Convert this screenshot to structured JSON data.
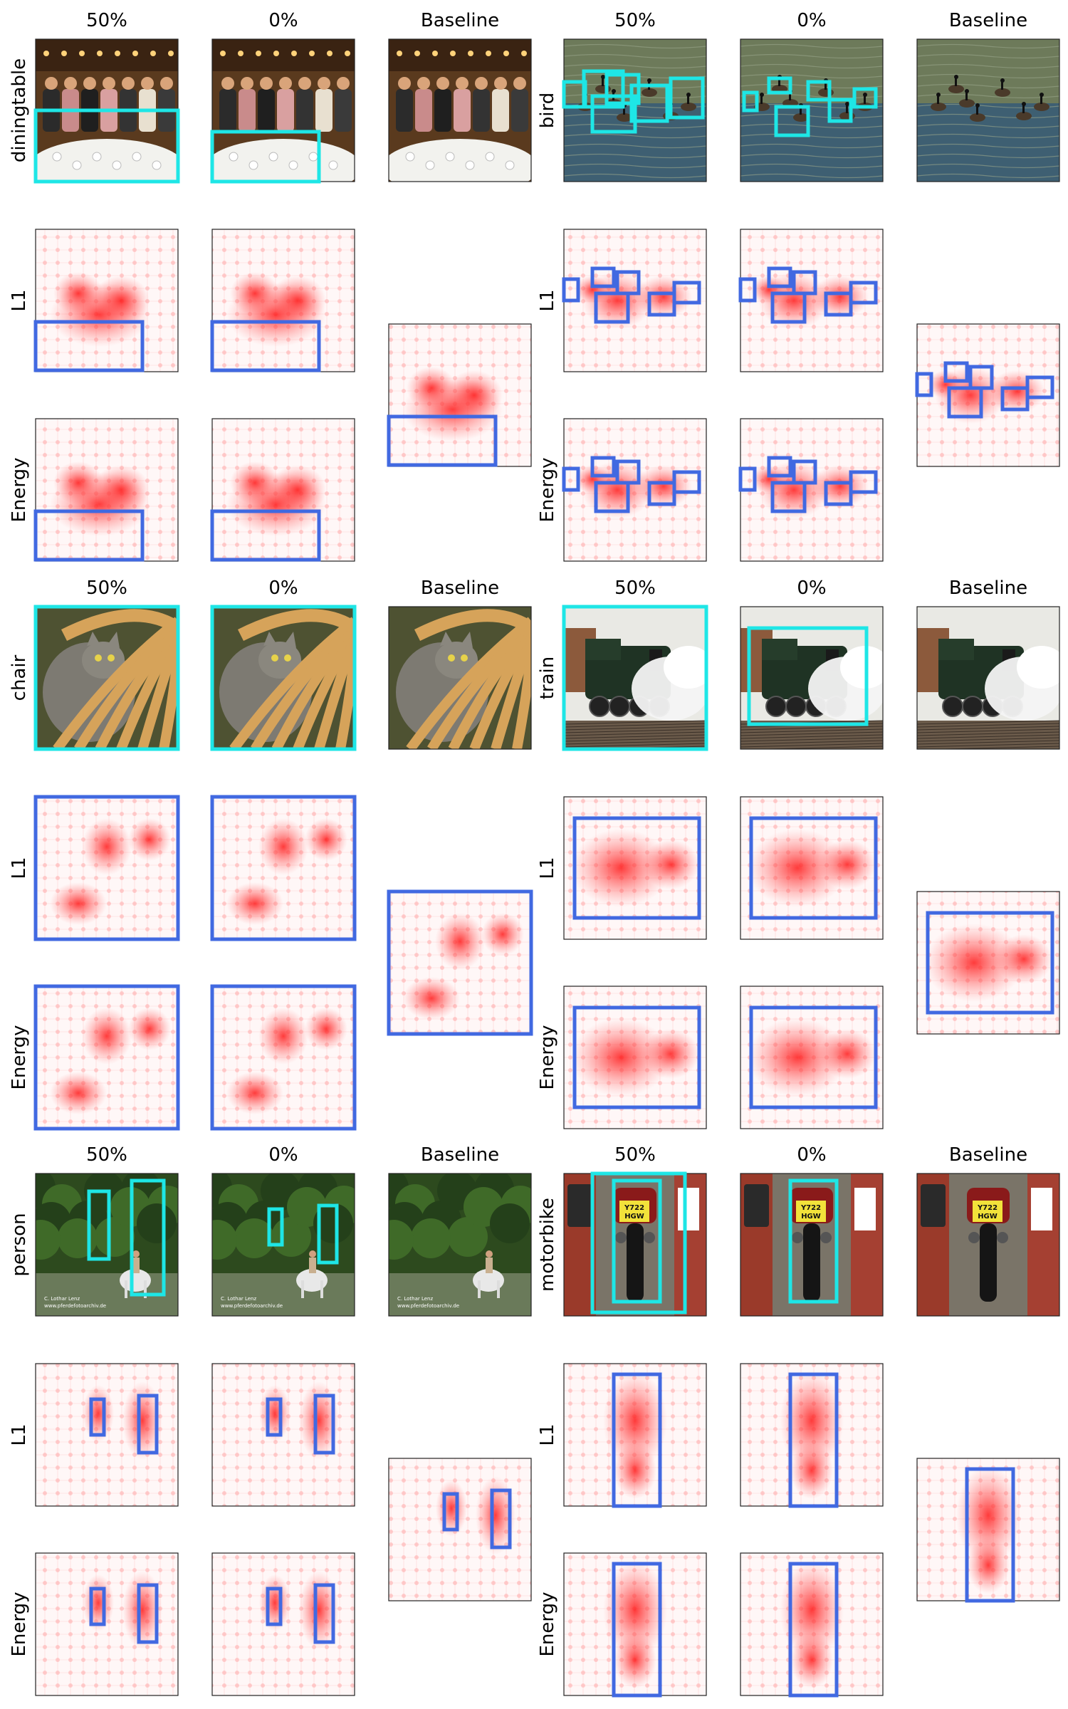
{
  "column_headers": [
    "50%",
    "0%",
    "Baseline"
  ],
  "row_labels": [
    "L1",
    "Energy"
  ],
  "colors": {
    "gt_box": "#1ee6e6",
    "pred_box": "#4169e1",
    "heat": "#ff2020",
    "frame": "#222222"
  },
  "groups": [
    {
      "class_label": "diningtable",
      "scene": "dinner"
    },
    {
      "class_label": "bird",
      "scene": "birds"
    },
    {
      "class_label": "chair",
      "scene": "cat"
    },
    {
      "class_label": "train",
      "scene": "train"
    },
    {
      "class_label": "person",
      "scene": "forest"
    },
    {
      "class_label": "motorbike",
      "scene": "moto"
    }
  ],
  "watermark_lines": [
    "C. Lothar Lenz",
    "www.pferdefotoarchiv.de"
  ],
  "plate_text": [
    "Y722",
    "HGW"
  ]
}
